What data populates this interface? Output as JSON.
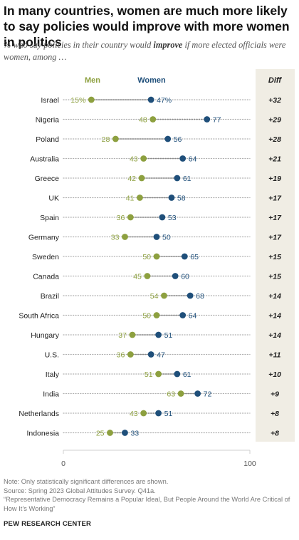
{
  "title": "In many countries, women are much more likely to say policies would improve with more women in politics",
  "subtitle_before": "% who say policies in their country would ",
  "subtitle_emph": "improve",
  "subtitle_after": " if more elected officials were women, among …",
  "notes": {
    "note": "Note: Only statistically significant differences are shown.",
    "source": "Source: Spring 2023 Global Attitudes Survey. Q41a.",
    "report": "“Representative Democracy Remains a Popular Ideal, But People Around the World Are Critical of How It’s Working”"
  },
  "org": "PEW RESEARCH CENTER",
  "colors": {
    "men": "#8da03f",
    "women": "#1f4f7a",
    "diff_bg": "#f0ede4",
    "dots": "#b0b0b0"
  },
  "chart_data": {
    "type": "scatter",
    "xlim": [
      0,
      100
    ],
    "x_ticks": [
      0,
      100
    ],
    "legend_men": "Men",
    "legend_women": "Women",
    "diff_header": "Diff",
    "rows": [
      {
        "country": "Israel",
        "men": 15,
        "women": 47,
        "men_label": "15%",
        "women_label": "47%",
        "diff": "+32"
      },
      {
        "country": "Nigeria",
        "men": 48,
        "women": 77,
        "men_label": "48",
        "women_label": "77",
        "diff": "+29"
      },
      {
        "country": "Poland",
        "men": 28,
        "women": 56,
        "men_label": "28",
        "women_label": "56",
        "diff": "+28"
      },
      {
        "country": "Australia",
        "men": 43,
        "women": 64,
        "men_label": "43",
        "women_label": "64",
        "diff": "+21"
      },
      {
        "country": "Greece",
        "men": 42,
        "women": 61,
        "men_label": "42",
        "women_label": "61",
        "diff": "+19"
      },
      {
        "country": "UK",
        "men": 41,
        "women": 58,
        "men_label": "41",
        "women_label": "58",
        "diff": "+17"
      },
      {
        "country": "Spain",
        "men": 36,
        "women": 53,
        "men_label": "36",
        "women_label": "53",
        "diff": "+17"
      },
      {
        "country": "Germany",
        "men": 33,
        "women": 50,
        "men_label": "33",
        "women_label": "50",
        "diff": "+17"
      },
      {
        "country": "Sweden",
        "men": 50,
        "women": 65,
        "men_label": "50",
        "women_label": "65",
        "diff": "+15"
      },
      {
        "country": "Canada",
        "men": 45,
        "women": 60,
        "men_label": "45",
        "women_label": "60",
        "diff": "+15"
      },
      {
        "country": "Brazil",
        "men": 54,
        "women": 68,
        "men_label": "54",
        "women_label": "68",
        "diff": "+14"
      },
      {
        "country": "South Africa",
        "men": 50,
        "women": 64,
        "men_label": "50",
        "women_label": "64",
        "diff": "+14"
      },
      {
        "country": "Hungary",
        "men": 37,
        "women": 51,
        "men_label": "37",
        "women_label": "51",
        "diff": "+14"
      },
      {
        "country": "U.S.",
        "men": 36,
        "women": 47,
        "men_label": "36",
        "women_label": "47",
        "diff": "+11"
      },
      {
        "country": "Italy",
        "men": 51,
        "women": 61,
        "men_label": "51",
        "women_label": "61",
        "diff": "+10"
      },
      {
        "country": "India",
        "men": 63,
        "women": 72,
        "men_label": "63",
        "women_label": "72",
        "diff": "+9"
      },
      {
        "country": "Netherlands",
        "men": 43,
        "women": 51,
        "men_label": "43",
        "women_label": "51",
        "diff": "+8"
      },
      {
        "country": "Indonesia",
        "men": 25,
        "women": 33,
        "men_label": "25",
        "women_label": "33",
        "diff": "+8"
      }
    ]
  }
}
